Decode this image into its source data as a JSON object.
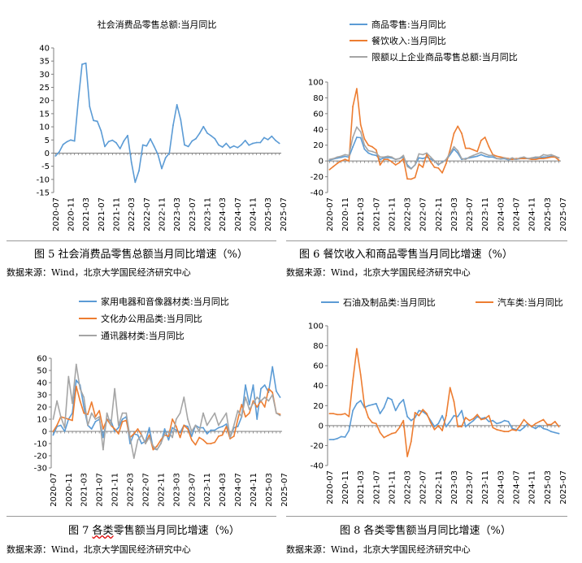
{
  "chart_data": [
    {
      "type": "line",
      "title": "",
      "ylim": [
        -15,
        40
      ],
      "yticks": [
        -15,
        -10,
        -5,
        0,
        5,
        10,
        15,
        20,
        25,
        30,
        35,
        40
      ],
      "x_tick_labels": [
        "2020-07",
        "2020-11",
        "2021-03",
        "2021-07",
        "2021-11",
        "2022-03",
        "2022-07",
        "2022-11",
        "2023-03",
        "2023-07",
        "2023-11",
        "2024-03",
        "2024-07",
        "2024-11",
        "2025-03",
        "2025-07"
      ],
      "series": [
        {
          "name": "社会消费品零售总额:当月同比",
          "color": "#5b9bd5",
          "values": [
            -1.1,
            0.5,
            3.3,
            4.3,
            5.0,
            4.6,
            20.0,
            33.8,
            34.2,
            17.7,
            12.4,
            12.1,
            8.5,
            2.5,
            4.4,
            4.9,
            3.9,
            1.7,
            4.6,
            6.7,
            -3.5,
            -11.1,
            -6.7,
            3.1,
            2.7,
            5.4,
            2.5,
            -0.5,
            -5.9,
            -1.8,
            0.0,
            10.6,
            18.4,
            12.7,
            3.1,
            2.5,
            4.6,
            5.5,
            7.6,
            10.1,
            7.6,
            6.6,
            5.5,
            3.1,
            2.3,
            3.7,
            2.0,
            2.7,
            2.1,
            3.2,
            4.8,
            3.0,
            3.7,
            4.0,
            4.0,
            5.9,
            5.1,
            6.4,
            4.8,
            3.7
          ]
        }
      ]
    },
    {
      "type": "line",
      "title": "",
      "ylim": [
        -40,
        100
      ],
      "yticks": [
        -40,
        -20,
        0,
        20,
        40,
        60,
        80,
        100
      ],
      "x_tick_labels": [
        "2020-07",
        "2020-11",
        "2021-03",
        "2021-07",
        "2021-11",
        "2022-03",
        "2022-07",
        "2022-11",
        "2023-03",
        "2023-07",
        "2023-11",
        "2024-03",
        "2024-07",
        "2024-11",
        "2025-03",
        "2025-07"
      ],
      "legend": [
        "商品零售:当月同比",
        "餐饮收入:当月同比",
        "限额以上企业商品零售总额:当月同比"
      ],
      "series": [
        {
          "name": "商品零售:当月同比",
          "color": "#5b9bd5",
          "values": [
            1.0,
            2.5,
            3.6,
            4.6,
            5.8,
            4.9,
            18.0,
            30.0,
            29.5,
            15.0,
            10.0,
            8.0,
            7.0,
            2.0,
            4.0,
            4.5,
            4.0,
            2.0,
            3.0,
            5.0,
            -5.0,
            -9.7,
            -5.0,
            4.0,
            3.0,
            5.0,
            2.5,
            0.0,
            -5.0,
            -1.0,
            1.0,
            8.0,
            15.0,
            10.0,
            2.0,
            3.0,
            4.0,
            5.0,
            6.0,
            8.0,
            6.0,
            5.0,
            5.0,
            3.0,
            2.5,
            3.0,
            1.5,
            2.5,
            2.0,
            3.0,
            4.0,
            3.0,
            3.5,
            4.0,
            4.0,
            5.0,
            5.0,
            6.0,
            5.0,
            4.0
          ]
        },
        {
          "name": "餐饮收入:当月同比",
          "color": "#ed7d31",
          "values": [
            -11.0,
            -7.0,
            -3.0,
            0.0,
            2.0,
            0.0,
            69.0,
            91.6,
            46.0,
            28.0,
            20.0,
            18.0,
            14.0,
            -5.0,
            2.0,
            2.0,
            -1.0,
            -5.0,
            -2.0,
            3.0,
            -22.7,
            -23.0,
            -21.0,
            -4.0,
            -8.0,
            8.6,
            -1.0,
            -8.0,
            -9.0,
            -15.0,
            -3.0,
            14.0,
            35.0,
            44.0,
            35.0,
            16.0,
            16.0,
            14.0,
            12.0,
            26.0,
            30.0,
            18.0,
            8.0,
            6.0,
            5.0,
            4.0,
            3.0,
            2.0,
            3.0,
            3.0,
            3.0,
            3.0,
            2.0,
            2.0,
            3.0,
            3.0,
            4.0,
            5.0,
            5.0,
            1.0
          ]
        },
        {
          "name": "限额以上企业商品零售总额:当月同比",
          "color": "#a5a5a5",
          "values": [
            2.0,
            3.0,
            5.0,
            6.0,
            8.0,
            7.0,
            30.0,
            43.0,
            37.0,
            20.0,
            13.0,
            12.0,
            10.0,
            5.0,
            5.0,
            6.0,
            5.0,
            2.0,
            3.0,
            7.0,
            -7.0,
            -10.0,
            -5.0,
            9.0,
            8.0,
            10.0,
            5.0,
            0.0,
            -4.0,
            -2.0,
            2.0,
            10.0,
            18.0,
            13.0,
            3.0,
            2.0,
            5.0,
            7.0,
            9.0,
            11.0,
            9.0,
            7.0,
            7.0,
            3.0,
            3.0,
            4.0,
            2.0,
            4.0,
            2.0,
            4.0,
            5.0,
            3.0,
            4.0,
            5.0,
            5.0,
            8.0,
            7.0,
            8.0,
            6.0,
            4.0
          ]
        }
      ]
    },
    {
      "type": "line",
      "title": "",
      "ylim": [
        -30,
        60
      ],
      "yticks": [
        -30,
        -20,
        -10,
        0,
        10,
        20,
        30,
        40,
        50,
        60
      ],
      "x_tick_labels": [
        "2020-07",
        "2020-11",
        "2021-03",
        "2021-07",
        "2021-11",
        "2022-03",
        "2022-07",
        "2022-11",
        "2023-03",
        "2023-07",
        "2023-11",
        "2024-03",
        "2024-07",
        "2024-11",
        "2025-03",
        "2025-07"
      ],
      "legend": [
        "家用电器和音像器材类:当月同比",
        "文化办公用品类:当月同比",
        "通讯器材类:当月同比"
      ],
      "series": [
        {
          "name": "家用电器和音像器材类:当月同比",
          "color": "#5b9bd5",
          "values": [
            -3.0,
            4.0,
            5.0,
            0.0,
            10.0,
            15.0,
            42.0,
            38.0,
            20.0,
            5.0,
            2.0,
            8.0,
            10.0,
            -5.0,
            10.0,
            9.0,
            0.0,
            3.0,
            10.0,
            12.0,
            -10.0,
            -2.0,
            -3.0,
            -10.0,
            -8.0,
            3.0,
            -14.0,
            -15.0,
            -10.0,
            2.0,
            -7.0,
            3.0,
            1.0,
            -1.0,
            5.0,
            4.0,
            -4.0,
            5.0,
            3.0,
            3.0,
            -2.0,
            1.0,
            1.0,
            3.0,
            4.0,
            6.0,
            -5.0,
            3.0,
            4.0,
            12.0,
            38.0,
            22.0,
            38.0,
            10.0,
            35.0,
            38.0,
            32.0,
            53.0,
            33.0,
            28.0
          ]
        },
        {
          "name": "文化办公用品类:当月同比",
          "color": "#ed7d31",
          "values": [
            0.0,
            5.0,
            12.0,
            11.0,
            10.0,
            9.0,
            37.0,
            25.0,
            15.0,
            14.0,
            24.0,
            12.0,
            17.0,
            2.0,
            10.0,
            5.0,
            2.0,
            -2.0,
            8.0,
            9.0,
            -5.0,
            -2.0,
            2.0,
            -3.0,
            -10.0,
            -3.0,
            -15.0,
            -12.0,
            -7.0,
            -3.0,
            -4.0,
            10.0,
            4.0,
            -5.0,
            5.0,
            2.0,
            -7.0,
            -11.0,
            -5.0,
            -7.0,
            -10.0,
            -10.0,
            -9.0,
            -4.0,
            -3.0,
            4.0,
            -6.0,
            -4.0,
            10.0,
            22.0,
            12.0,
            15.0,
            25.0,
            20.0,
            25.0,
            20.0,
            35.0,
            32.0,
            15.0,
            14.0
          ]
        },
        {
          "name": "通讯器材类:当月同比",
          "color": "#a5a5a5",
          "values": [
            10.0,
            25.0,
            12.0,
            3.0,
            45.0,
            23.0,
            55.0,
            35.0,
            28.0,
            5.0,
            15.0,
            10.0,
            12.0,
            -15.0,
            15.0,
            5.0,
            35.0,
            5.0,
            15.0,
            15.0,
            -5.0,
            -22.0,
            -7.0,
            -3.0,
            -10.0,
            -5.0,
            -12.0,
            -15.0,
            -10.0,
            -2.0,
            0.0,
            -5.0,
            10.0,
            15.0,
            28.0,
            10.0,
            0.0,
            5.0,
            0.0,
            15.0,
            5.0,
            10.0,
            15.0,
            5.0,
            10.0,
            15.0,
            -5.0,
            5.0,
            17.0,
            12.0,
            28.0,
            18.0,
            23.0,
            28.0,
            25.0,
            28.0,
            25.0,
            30.0,
            15.0,
            13.0
          ]
        }
      ]
    },
    {
      "type": "line",
      "title": "",
      "ylim": [
        -40,
        100
      ],
      "yticks": [
        -40,
        -20,
        0,
        20,
        40,
        60,
        80,
        100
      ],
      "x_tick_labels": [
        "2020-07",
        "2020-11",
        "2021-03",
        "2021-07",
        "2021-11",
        "2022-03",
        "2022-07",
        "2022-11",
        "2023-03",
        "2023-07",
        "2023-11",
        "2024-03",
        "2024-07",
        "2024-11",
        "2025-03",
        "2025-07"
      ],
      "legend": [
        "石油及制品类:当月同比",
        "汽车类:当月同比"
      ],
      "series": [
        {
          "name": "石油及制品类:当月同比",
          "color": "#5b9bd5",
          "values": [
            -14.0,
            -14.0,
            -13.0,
            -11.0,
            -11.5,
            -5.0,
            15.0,
            22.0,
            25.0,
            18.0,
            20.0,
            21.0,
            22.0,
            12.0,
            18.0,
            28.0,
            26.0,
            15.0,
            22.0,
            26.0,
            9.0,
            5.0,
            8.0,
            15.0,
            14.0,
            11.0,
            5.0,
            -1.0,
            2.0,
            10.0,
            -1.0,
            4.0,
            10.0,
            9.0,
            15.0,
            -1.0,
            2.0,
            5.0,
            9.0,
            7.0,
            8.0,
            4.0,
            5.0,
            2.0,
            3.0,
            5.0,
            4.0,
            -3.0,
            -4.0,
            -5.0,
            -2.0,
            2.0,
            -1.0,
            -3.0,
            0.0,
            -3.0,
            -4.0,
            -6.0,
            -7.0,
            -8.0
          ]
        },
        {
          "name": "汽车类:当月同比",
          "color": "#ed7d31",
          "values": [
            12.0,
            12.0,
            11.0,
            11.0,
            12.0,
            9.0,
            45.0,
            77.0,
            51.0,
            20.0,
            8.0,
            3.0,
            2.0,
            -7.0,
            -12.0,
            -10.0,
            -8.0,
            -7.0,
            -2.0,
            5.0,
            -31.0,
            -16.0,
            13.0,
            10.0,
            16.0,
            12.0,
            3.0,
            -4.0,
            0.0,
            -5.0,
            10.0,
            38.0,
            24.0,
            -1.0,
            -1.0,
            8.0,
            5.0,
            7.0,
            11.0,
            6.0,
            7.0,
            10.0,
            -2.0,
            -4.0,
            -5.0,
            -6.0,
            -6.0,
            -4.0,
            -5.0,
            0.0,
            6.0,
            2.0,
            -1.0,
            2.0,
            4.0,
            6.0,
            1.0,
            1.0,
            4.0,
            -1.0
          ]
        }
      ]
    }
  ],
  "panels": [
    {
      "title": "社会消费品零售总额:当月同比",
      "caption": "图 5 社会消费品零售总额当月同比增速（%）",
      "source": "数据来源：Wind，北京大学国民经济研究中心"
    },
    {
      "caption": "图 6  餐饮收入和商品零售当月同比增速（%）",
      "source": "数据来源：Wind，北京大学国民经济研究中心"
    },
    {
      "caption_prefix": "图 7 ",
      "caption_underlined": "各类",
      "caption_rest": "零售额当月同比增速（%）",
      "source": "数据来源：Wind，北京大学国民经济研究中心"
    },
    {
      "caption": "图 8 各类零售额当月同比增速（%）",
      "source": "数据来源：Wind，北京大学国民经济研究中心"
    }
  ]
}
